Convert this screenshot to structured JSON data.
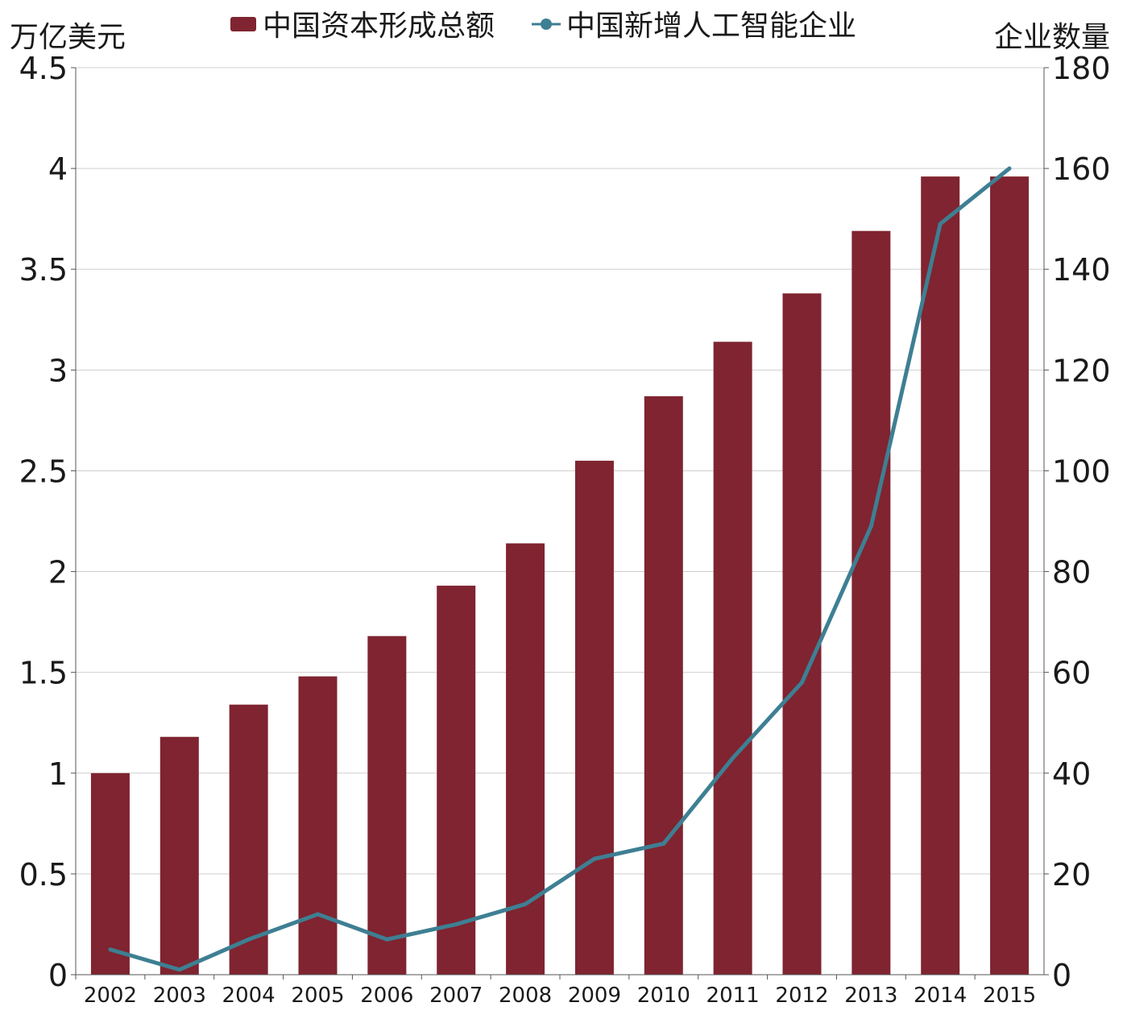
{
  "chart_data": {
    "type": "bar+line",
    "categories": [
      "2002",
      "2003",
      "2004",
      "2005",
      "2006",
      "2007",
      "2008",
      "2009",
      "2010",
      "2011",
      "2012",
      "2013",
      "2014",
      "2015"
    ],
    "series": [
      {
        "name": "中国资本形成总额",
        "type": "bar",
        "axis": "left",
        "color": "#7f2430",
        "values": [
          1.0,
          1.18,
          1.34,
          1.48,
          1.68,
          1.93,
          2.14,
          2.55,
          2.87,
          3.14,
          3.38,
          3.69,
          3.96,
          3.96
        ]
      },
      {
        "name": "中国新增人工智能企业",
        "type": "line",
        "axis": "right",
        "color": "#3e7f93",
        "values": [
          5,
          1,
          7,
          12,
          7,
          10,
          14,
          23,
          26,
          43,
          58,
          89,
          149,
          160
        ]
      }
    ],
    "ylabel_left": "万亿美元",
    "ylabel_right": "企业数量",
    "ylim_left": [
      0,
      4.5
    ],
    "ylim_right": [
      0,
      180
    ],
    "yticks_left": [
      "0",
      "0.5",
      "1",
      "1.5",
      "2",
      "2.5",
      "3",
      "3.5",
      "4",
      "4.5"
    ],
    "yticks_right": [
      "0",
      "20",
      "40",
      "60",
      "80",
      "100",
      "120",
      "140",
      "160",
      "180"
    ],
    "grid": true,
    "legend": "top"
  }
}
